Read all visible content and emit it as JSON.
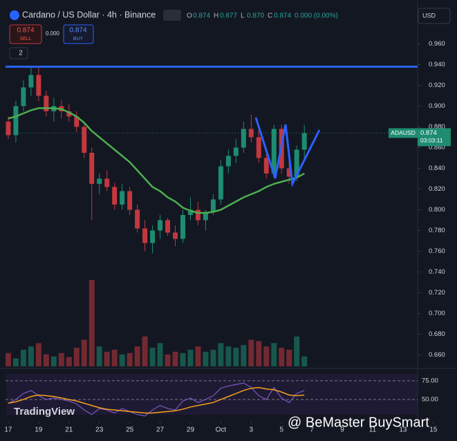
{
  "chart_data": {
    "type": "candlestick",
    "title": "Cardano / US Dollar · 4h · Binance",
    "ohlc": [
      {
        "k": "O",
        "v": "0.874"
      },
      {
        "k": "H",
        "v": "0.877"
      },
      {
        "k": "L",
        "v": "0.870"
      },
      {
        "k": "C",
        "v": "0.874"
      }
    ],
    "change": "0.000 (0.00%)",
    "x": [
      17,
      17.5,
      18,
      18.5,
      19,
      19.5,
      20,
      20.5,
      21,
      21.5,
      22,
      22.5,
      23,
      23.5,
      24,
      24.5,
      25,
      25.5,
      26,
      26.5,
      27,
      27.5,
      28,
      28.5,
      29,
      29.5,
      30,
      30.5,
      31,
      31.5,
      32,
      32.5,
      33,
      33.5,
      34,
      34.5,
      35,
      35.5,
      36,
      36.5
    ],
    "xlim": [
      16.82,
      43.96
    ],
    "xticks": [
      17,
      19,
      21,
      23,
      25,
      27,
      29,
      {
        "value": 31,
        "label": "Oct"
      },
      {
        "value": 33,
        "label": "3"
      },
      {
        "value": 35,
        "label": "5"
      },
      {
        "value": 37,
        "label": "7"
      },
      {
        "value": 39,
        "label": "9"
      },
      {
        "value": 41,
        "label": "11"
      },
      {
        "value": 43,
        "label": "13"
      },
      {
        "value": 45,
        "label": "15"
      }
    ],
    "ylim": [
      0.649,
      0.997
    ],
    "yticks": [
      {
        "value": 0.66,
        "label": "0.660"
      },
      {
        "value": 0.68,
        "label": "0.680"
      },
      {
        "value": 0.7,
        "label": "0.700"
      },
      {
        "value": 0.72,
        "label": "0.720"
      },
      {
        "value": 0.74,
        "label": "0.740"
      },
      {
        "value": 0.76,
        "label": "0.760"
      },
      {
        "value": 0.78,
        "label": "0.780"
      },
      {
        "value": 0.8,
        "label": "0.800"
      },
      {
        "value": 0.82,
        "label": "0.820"
      },
      {
        "value": 0.84,
        "label": "0.840"
      },
      {
        "value": 0.86,
        "label": "0.860"
      },
      {
        "value": 0.88,
        "label": "0.880"
      },
      {
        "value": 0.9,
        "label": "0.900"
      },
      {
        "value": 0.92,
        "label": "0.920"
      },
      {
        "value": 0.94,
        "label": "0.940"
      },
      {
        "value": 0.96,
        "label": "0.960"
      }
    ],
    "open": [
      0.885,
      0.872,
      0.9,
      0.918,
      0.93,
      0.91,
      0.895,
      0.9,
      0.895,
      0.89,
      0.88,
      0.855,
      0.825,
      0.83,
      0.822,
      0.805,
      0.818,
      0.8,
      0.782,
      0.768,
      0.78,
      0.79,
      0.778,
      0.772,
      0.795,
      0.8,
      0.79,
      0.798,
      0.81,
      0.842,
      0.852,
      0.86,
      0.878,
      0.87,
      0.85,
      0.835,
      0.878,
      0.84,
      0.832,
      0.858
    ],
    "high": [
      0.89,
      0.905,
      0.925,
      0.938,
      0.937,
      0.915,
      0.908,
      0.906,
      0.902,
      0.895,
      0.885,
      0.86,
      0.835,
      0.838,
      0.826,
      0.825,
      0.822,
      0.805,
      0.79,
      0.785,
      0.795,
      0.792,
      0.785,
      0.8,
      0.812,
      0.808,
      0.8,
      0.815,
      0.848,
      0.858,
      0.868,
      0.885,
      0.892,
      0.878,
      0.86,
      0.882,
      0.882,
      0.848,
      0.862,
      0.882
    ],
    "low": [
      0.868,
      0.865,
      0.895,
      0.91,
      0.905,
      0.89,
      0.885,
      0.888,
      0.885,
      0.875,
      0.85,
      0.79,
      0.815,
      0.818,
      0.8,
      0.8,
      0.795,
      0.778,
      0.76,
      0.758,
      0.772,
      0.775,
      0.765,
      0.768,
      0.79,
      0.785,
      0.78,
      0.795,
      0.805,
      0.835,
      0.845,
      0.855,
      0.865,
      0.845,
      0.83,
      0.832,
      0.835,
      0.825,
      0.828,
      0.85
    ],
    "close": [
      0.872,
      0.9,
      0.918,
      0.93,
      0.91,
      0.895,
      0.9,
      0.895,
      0.89,
      0.88,
      0.855,
      0.825,
      0.83,
      0.822,
      0.805,
      0.818,
      0.8,
      0.782,
      0.768,
      0.78,
      0.79,
      0.778,
      0.772,
      0.795,
      0.8,
      0.79,
      0.798,
      0.81,
      0.842,
      0.852,
      0.86,
      0.878,
      0.87,
      0.85,
      0.835,
      0.878,
      0.84,
      0.832,
      0.858,
      0.874
    ],
    "up_color": "#1e8c70",
    "down_color": "#c2383e",
    "ma": {
      "color": "#4caf50",
      "values": [
        0.888,
        0.89,
        0.893,
        0.896,
        0.898,
        0.898,
        0.898,
        0.897,
        0.894,
        0.89,
        0.884,
        0.876,
        0.87,
        0.864,
        0.858,
        0.852,
        0.846,
        0.838,
        0.83,
        0.822,
        0.818,
        0.812,
        0.808,
        0.802,
        0.799,
        0.797,
        0.797,
        0.798,
        0.8,
        0.804,
        0.808,
        0.812,
        0.815,
        0.818,
        0.822,
        0.825,
        0.827,
        0.829,
        0.831,
        0.835
      ]
    },
    "hline": {
      "value": 0.938,
      "color": "#2962ff"
    },
    "volume": [
      20,
      12,
      25,
      30,
      35,
      18,
      15,
      20,
      14,
      28,
      40,
      130,
      30,
      22,
      25,
      18,
      20,
      30,
      45,
      28,
      35,
      18,
      22,
      20,
      25,
      30,
      22,
      25,
      35,
      30,
      28,
      32,
      40,
      38,
      30,
      35,
      28,
      25,
      45,
      15
    ],
    "last": {
      "symbol": "ADAUSD",
      "value": 0.874,
      "countdown": "03:03:11"
    },
    "rsi": {
      "ylim": [
        26,
        85
      ],
      "yticks": [
        {
          "value": 75,
          "label": "75.00"
        },
        {
          "value": 50,
          "label": "50.00"
        }
      ],
      "color": "#7e57c2",
      "ma_color": "#f7a21b",
      "values": [
        45,
        50,
        58,
        62,
        55,
        50,
        52,
        50,
        48,
        44,
        36,
        30,
        38,
        36,
        32,
        38,
        34,
        30,
        28,
        36,
        42,
        38,
        36,
        48,
        52,
        46,
        50,
        55,
        65,
        68,
        70,
        72,
        66,
        55,
        50,
        66,
        52,
        46,
        58,
        62
      ],
      "ma": [
        45,
        47,
        50,
        54,
        56,
        55,
        54,
        52,
        50,
        48,
        45,
        42,
        39,
        37,
        36,
        35,
        34,
        33,
        32,
        32,
        33,
        34,
        35,
        37,
        40,
        42,
        44,
        46,
        50,
        54,
        58,
        62,
        65,
        66,
        64,
        63,
        60,
        56,
        55,
        56
      ]
    }
  },
  "ui": {
    "currency": "USD",
    "sell_price": "0.874",
    "sell": "SELL",
    "spread": "0.000",
    "buy_price": "0.874",
    "buy": "BUY",
    "indicators": "2",
    "logo": "TradingView",
    "watermark": "@ BeMaster BuySmart"
  }
}
